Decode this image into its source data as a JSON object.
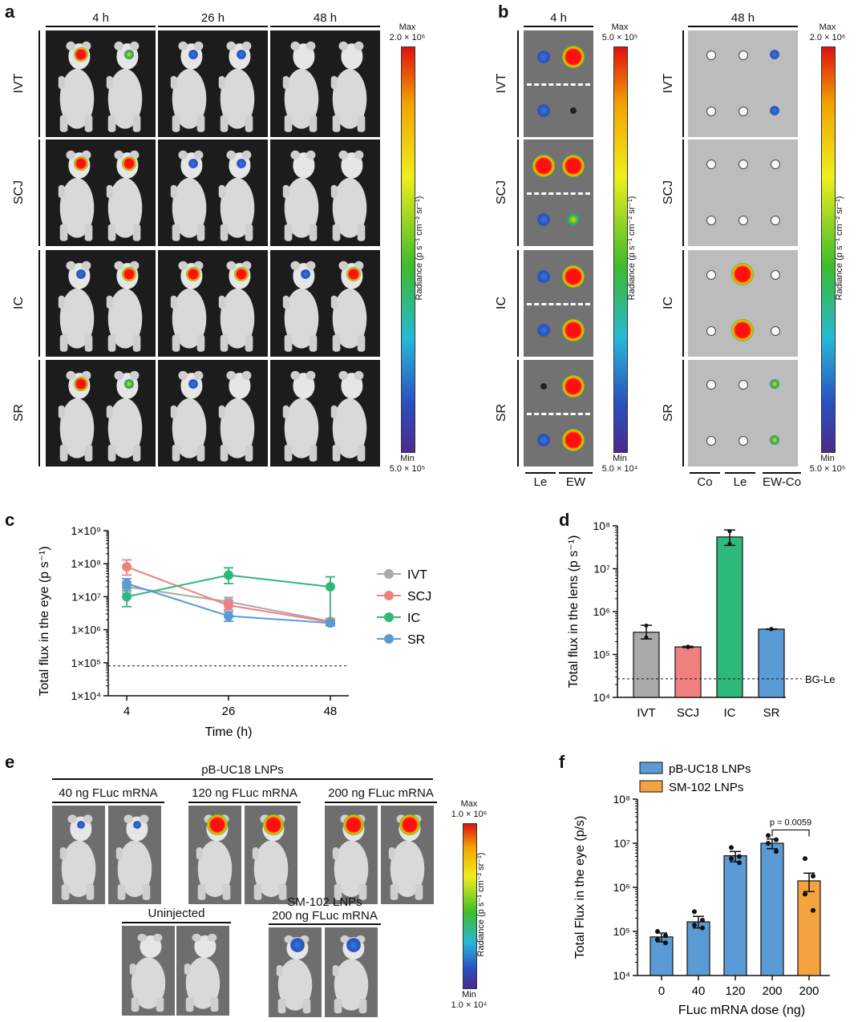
{
  "panel_a": {
    "label": "a",
    "columns": [
      "4 h",
      "26 h",
      "48 h"
    ],
    "rows": [
      "IVT",
      "SCJ",
      "IC",
      "SR"
    ],
    "colorbar": {
      "max_label": "Max",
      "max_value": "2.0 × 10⁶",
      "min_label": "Min",
      "min_value": "5.0 × 10⁵",
      "axis_label": "Radiance (p s⁻¹ cm⁻² sr⁻¹)"
    }
  },
  "panel_b": {
    "label": "b",
    "left_header": "4 h",
    "right_header": "48 h",
    "rows": [
      "IVT",
      "SCJ",
      "IC",
      "SR"
    ],
    "left_columns": [
      "Le",
      "EW"
    ],
    "right_columns": [
      "Co",
      "Le",
      "EW-Co"
    ],
    "colorbar_left": {
      "max_label": "Max",
      "max_value": "5.0 × 10⁵",
      "min_label": "Min",
      "min_value": "5.0 × 10⁴",
      "axis_label": "Radiance (p s⁻¹ cm⁻² sr⁻¹)"
    },
    "colorbar_right": {
      "max_label": "Max",
      "max_value": "2.0 × 10⁶",
      "min_label": "Min",
      "min_value": "5.0 × 10⁵",
      "axis_label": "Radiance (p s⁻¹ cm⁻² sr⁻¹)"
    }
  },
  "panel_e": {
    "label": "e",
    "group_title": "pB-UC18 LNPs",
    "doses": [
      "40 ng FLuc mRNA",
      "120 ng FLuc mRNA",
      "200 ng FLuc mRNA"
    ],
    "uninjected": "Uninjected",
    "sm_title": "SM-102 LNPs",
    "sm_dose": "200 ng FLuc mRNA",
    "colorbar": {
      "max_label": "Max",
      "max_value": "1.0 × 10⁶",
      "min_label": "Min",
      "min_value": "1.0 × 10⁴",
      "axis_label": "Radiance (p s⁻¹ cm⁻² sr⁻¹)"
    }
  },
  "colors": {
    "IVT": "#a9a9a9",
    "SCJ": "#f08080",
    "IC": "#2eb87a",
    "SR": "#5b9bd5",
    "pB": "#5b9bd5",
    "SM": "#f5a340"
  },
  "chart_data": [
    {
      "panel": "c",
      "type": "line",
      "x": [
        4,
        26,
        48
      ],
      "xlabel": "Time (h)",
      "ylabel": "Total flux in the eye (p s⁻¹)",
      "yscale": "log",
      "ylim": [
        10000,
        1000000000
      ],
      "yticks": [
        "1×10⁹",
        "1×10⁸",
        "1×10⁷",
        "1×10⁶",
        "1×10⁵",
        "1×10⁴"
      ],
      "baseline": 80000,
      "legend": "right",
      "series": [
        {
          "name": "IVT",
          "values": [
            20000000,
            7000000,
            1800000
          ],
          "err_low": [
            13000000,
            5000000,
            1400000
          ],
          "err_high": [
            28000000,
            9500000,
            2200000
          ]
        },
        {
          "name": "SCJ",
          "values": [
            80000000,
            5500000,
            1700000
          ],
          "err_low": [
            45000000,
            4000000,
            1500000
          ],
          "err_high": [
            130000000,
            7500000,
            2000000
          ]
        },
        {
          "name": "IC",
          "values": [
            10000000,
            45000000,
            20000000
          ],
          "err_low": [
            5000000,
            25000000,
            1500000
          ],
          "err_high": [
            18000000,
            75000000,
            40000000
          ]
        },
        {
          "name": "SR",
          "values": [
            25000000,
            2600000,
            1600000
          ],
          "err_low": [
            15000000,
            1800000,
            1300000
          ],
          "err_high": [
            35000000,
            3500000,
            1900000
          ]
        }
      ]
    },
    {
      "panel": "d",
      "type": "bar",
      "categories": [
        "IVT",
        "SCJ",
        "IC",
        "SR"
      ],
      "values": [
        330000,
        150000,
        55000000,
        390000
      ],
      "err_low": [
        230000,
        145000,
        35000000,
        385000
      ],
      "err_high": [
        480000,
        155000,
        80000000,
        395000
      ],
      "points": [
        [
          470000,
          250000
        ],
        [
          152000,
          148000
        ],
        [
          75000000,
          38000000
        ],
        [
          395000,
          388000
        ]
      ],
      "ylabel": "Total flux in the lens (p s⁻¹)",
      "yscale": "log",
      "ylim": [
        10000,
        100000000
      ],
      "yticks": [
        "10⁸",
        "10⁷",
        "10⁶",
        "10⁵",
        "10⁴"
      ],
      "baseline": 27000,
      "baseline_label": "BG-Le"
    },
    {
      "panel": "f",
      "type": "bar",
      "categories": [
        "0",
        "40",
        "120",
        "200",
        "200"
      ],
      "values": [
        75000,
        165000,
        5200000,
        10000000,
        1400000
      ],
      "err_low": [
        58000,
        120000,
        3800000,
        7500000,
        800000
      ],
      "err_high": [
        92000,
        220000,
        6500000,
        12500000,
        2100000
      ],
      "points": [
        [
          100000,
          80000,
          65000,
          55000
        ],
        [
          280000,
          180000,
          140000,
          120000
        ],
        [
          8000000,
          5000000,
          4500000,
          3600000
        ],
        [
          15000000,
          12000000,
          10000000,
          6500000
        ],
        [
          4500000,
          1800000,
          700000,
          300000
        ]
      ],
      "groups": [
        "pB",
        "pB",
        "pB",
        "pB",
        "SM"
      ],
      "legend": [
        "pB-UC18 LNPs",
        "SM-102 LNPs"
      ],
      "xlabel": "FLuc mRNA dose (ng)",
      "ylabel": "Total Flux in the eye (p/s)",
      "yscale": "log",
      "ylim": [
        10000,
        100000000
      ],
      "yticks": [
        "10⁸",
        "10⁷",
        "10⁶",
        "10⁵",
        "10⁴"
      ],
      "annotation": "p = 0.0059"
    }
  ]
}
